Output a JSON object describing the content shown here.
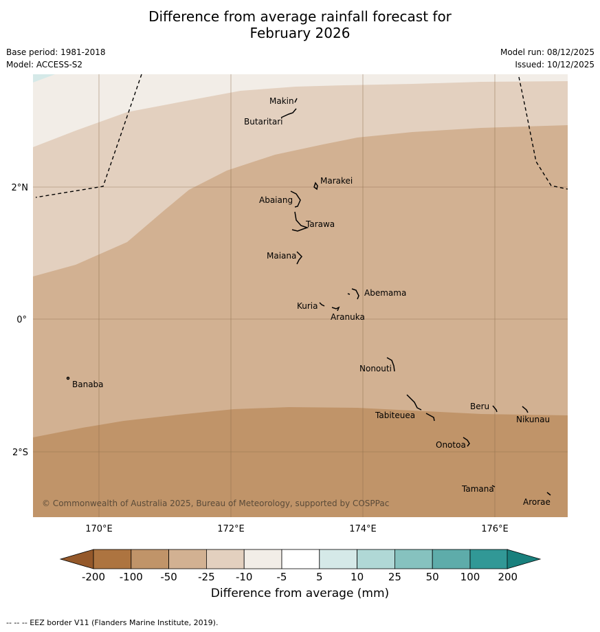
{
  "title_line1": "Difference from average rainfall forecast for",
  "title_line2": "February 2026",
  "base_period": "Base period: 1981-2018",
  "model": "Model: ACCESS-S2",
  "model_run": "Model run: 08/12/2025",
  "issued": "Issued: 10/12/2025",
  "copyright": "© Commonwealth of Australia 2025, Bureau of Meteorology, supported by COSPPac",
  "footer_note": "--  --  -- EEZ border V11 (Flanders Marine Institute, 2019).",
  "map": {
    "lon_ticks": [
      "170°E",
      "172°E",
      "174°E",
      "176°E"
    ],
    "lat_ticks": [
      "2°N",
      "0°",
      "2°S"
    ],
    "places": [
      "Makin",
      "Butaritari",
      "Marakei",
      "Abaiang",
      "Tarawa",
      "Maiana",
      "Abemama",
      "Kuria",
      "Aranuka",
      "Nonouti",
      "Banaba",
      "Tabiteuea",
      "Beru",
      "Nikunau",
      "Onotoa",
      "Tamana",
      "Arorae"
    ]
  },
  "colorbar": {
    "title": "Difference from average (mm)",
    "labels": [
      "-200",
      "-100",
      "-50",
      "-25",
      "-10",
      "-5",
      "5",
      "10",
      "25",
      "50",
      "100",
      "200"
    ],
    "colors": [
      "#ad7440",
      "#c09469",
      "#d2b192",
      "#e3d0bf",
      "#f2ede7",
      "#ffffff",
      "#d5e9e8",
      "#b0d8d6",
      "#86c2bf",
      "#5eacaa",
      "#319896"
    ],
    "low_extend_color": "#94582a",
    "high_extend_color": "#19807d"
  }
}
